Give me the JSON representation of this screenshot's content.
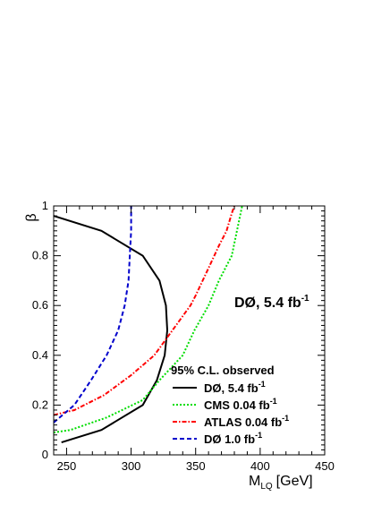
{
  "chart_data": {
    "type": "line",
    "xlabel": "M",
    "xlabel_sub": "LQ",
    "xlabel_unit": "[GeV]",
    "ylabel": "β",
    "xlim": [
      240,
      450
    ],
    "ylim": [
      0,
      1
    ],
    "x_ticks": [
      250,
      300,
      350,
      400,
      450
    ],
    "y_ticks": [
      0,
      0.2,
      0.4,
      0.6,
      0.8,
      1
    ],
    "y_tick_labels": [
      "0",
      "0.2",
      "0.4",
      "0.6",
      "0.8",
      "1"
    ],
    "annotation": {
      "text": "DØ, 5.4 fb",
      "sup": "-1"
    },
    "legend_header": "95% C.L. observed",
    "legend_position": "bottom-right",
    "grid": false,
    "series": [
      {
        "name": "DØ, 5.4 fb",
        "name_sup": "-1",
        "color": "#000000",
        "style": "solid",
        "points": [
          [
            240,
            0.96
          ],
          [
            277,
            0.9
          ],
          [
            309,
            0.8
          ],
          [
            322,
            0.7
          ],
          [
            327,
            0.6
          ],
          [
            328,
            0.5
          ],
          [
            326,
            0.4
          ],
          [
            320,
            0.3
          ],
          [
            309,
            0.2
          ],
          [
            277,
            0.1
          ],
          [
            246,
            0.05
          ]
        ]
      },
      {
        "name": "CMS 0.04 fb",
        "name_sup": "-1",
        "color": "#00dd00",
        "style": "dotted",
        "points": [
          [
            240,
            0.09
          ],
          [
            253,
            0.1
          ],
          [
            281,
            0.15
          ],
          [
            309,
            0.22
          ],
          [
            322,
            0.3
          ],
          [
            340,
            0.4
          ],
          [
            349,
            0.5
          ],
          [
            360,
            0.6
          ],
          [
            368,
            0.7
          ],
          [
            378,
            0.8
          ],
          [
            382,
            0.9
          ],
          [
            386,
            1.0
          ]
        ]
      },
      {
        "name": "ATLAS 0.04 fb",
        "name_sup": "-1",
        "color": "#ff0000",
        "style": "dashdot",
        "points": [
          [
            240,
            0.16
          ],
          [
            256,
            0.18
          ],
          [
            279,
            0.24
          ],
          [
            300,
            0.32
          ],
          [
            318,
            0.4
          ],
          [
            332,
            0.5
          ],
          [
            346,
            0.6
          ],
          [
            350,
            0.64
          ],
          [
            360,
            0.75
          ],
          [
            368,
            0.84
          ],
          [
            374,
            0.9
          ],
          [
            378,
            0.97
          ],
          [
            380,
            1.0
          ]
        ]
      },
      {
        "name": "DØ 1.0 fb",
        "name_sup": "-1",
        "color": "#0000cc",
        "style": "dashed",
        "points": [
          [
            240,
            0.13
          ],
          [
            256,
            0.2
          ],
          [
            269,
            0.3
          ],
          [
            281,
            0.4
          ],
          [
            290,
            0.5
          ],
          [
            295,
            0.6
          ],
          [
            298,
            0.7
          ],
          [
            299,
            0.8
          ],
          [
            300,
            0.9
          ],
          [
            300,
            1.0
          ]
        ]
      }
    ]
  }
}
